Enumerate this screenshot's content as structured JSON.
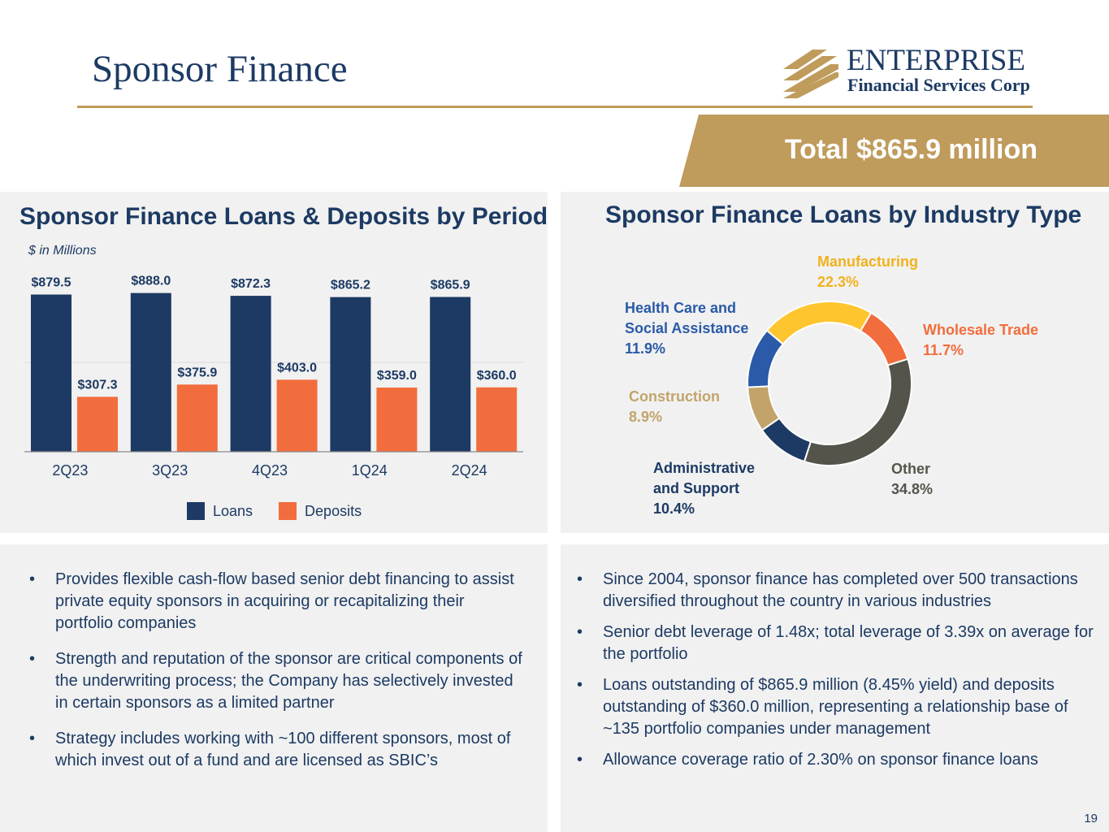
{
  "header": {
    "title": "Sponsor Finance",
    "logo_name": "ENTERPRISE",
    "logo_sub": "Financial Services Corp",
    "total": "Total $865.9 million"
  },
  "colors": {
    "navy": "#1c3a63",
    "orange": "#f26d3d",
    "gold": "#bf9b5c"
  },
  "left_panel": {
    "title": "Sponsor Finance Loans & Deposits by Period",
    "units": "$ in Millions"
  },
  "right_panel": {
    "title": "Sponsor Finance Loans by Industry Type"
  },
  "chart_data": [
    {
      "type": "bar",
      "title": "Sponsor Finance Loans & Deposits by Period",
      "ylabel": "$ in Millions",
      "categories": [
        "2Q23",
        "3Q23",
        "4Q23",
        "1Q24",
        "2Q24"
      ],
      "series": [
        {
          "name": "Loans",
          "color": "#1c3a63",
          "values": [
            879.5,
            888.0,
            872.3,
            865.2,
            865.9
          ],
          "labels": [
            "$879.5",
            "$888.0",
            "$872.3",
            "$865.2",
            "$865.9"
          ]
        },
        {
          "name": "Deposits",
          "color": "#f26d3d",
          "values": [
            307.3,
            375.9,
            403.0,
            359.0,
            360.0
          ],
          "labels": [
            "$307.3",
            "$375.9",
            "$403.0",
            "$359.0",
            "$360.0"
          ]
        }
      ],
      "ylim": [
        0,
        1000
      ],
      "grid": true,
      "legend": "bottom"
    },
    {
      "type": "pie",
      "title": "Sponsor Finance Loans by Industry Type",
      "slices": [
        {
          "name": "Manufacturing",
          "value": 22.3,
          "label": "22.3%",
          "color": "#fec52e"
        },
        {
          "name": "Wholesale Trade",
          "value": 11.7,
          "label": "11.7%",
          "color": "#f26d3d"
        },
        {
          "name": "Other",
          "value": 34.8,
          "label": "34.8%",
          "color": "#55544b"
        },
        {
          "name": "Administrative and Support",
          "value": 10.4,
          "label": "10.4%",
          "color": "#1c3a63"
        },
        {
          "name": "Construction",
          "value": 8.9,
          "label": "8.9%",
          "color": "#c2a46b"
        },
        {
          "name": "Health Care and Social Assistance",
          "value": 11.9,
          "label": "11.9%",
          "color": "#2a5aa8"
        }
      ]
    }
  ],
  "pie_labels": {
    "manufacturing": [
      "Manufacturing",
      "22.3%"
    ],
    "wholesale": [
      "Wholesale Trade",
      "11.7%"
    ],
    "other": [
      "Other",
      "34.8%"
    ],
    "admin": [
      "Administrative",
      "and Support",
      "10.4%"
    ],
    "construction": [
      "Construction",
      "8.9%"
    ],
    "health": [
      "Health Care and",
      "Social Assistance",
      "11.9%"
    ]
  },
  "left_bullets": [
    "Provides flexible cash-flow based senior debt financing to assist private equity sponsors in acquiring or recapitalizing their portfolio companies",
    "Strength and reputation of the sponsor are critical components of the underwriting process; the Company has selectively invested in certain sponsors as a limited partner",
    "Strategy includes working with ~100 different sponsors, most of which invest out of a fund and are licensed as SBIC’s"
  ],
  "right_bullets": [
    "Since 2004, sponsor finance has completed over 500 transactions diversified throughout the country in various industries",
    "Senior debt leverage of 1.48x; total leverage of 3.39x on average for the portfolio",
    "Loans outstanding of $865.9 million (8.45% yield) and deposits outstanding of $360.0 million, representing a relationship base of ~135 portfolio companies under management",
    "Allowance coverage ratio of 2.30% on sponsor finance loans"
  ],
  "page_number": "19"
}
